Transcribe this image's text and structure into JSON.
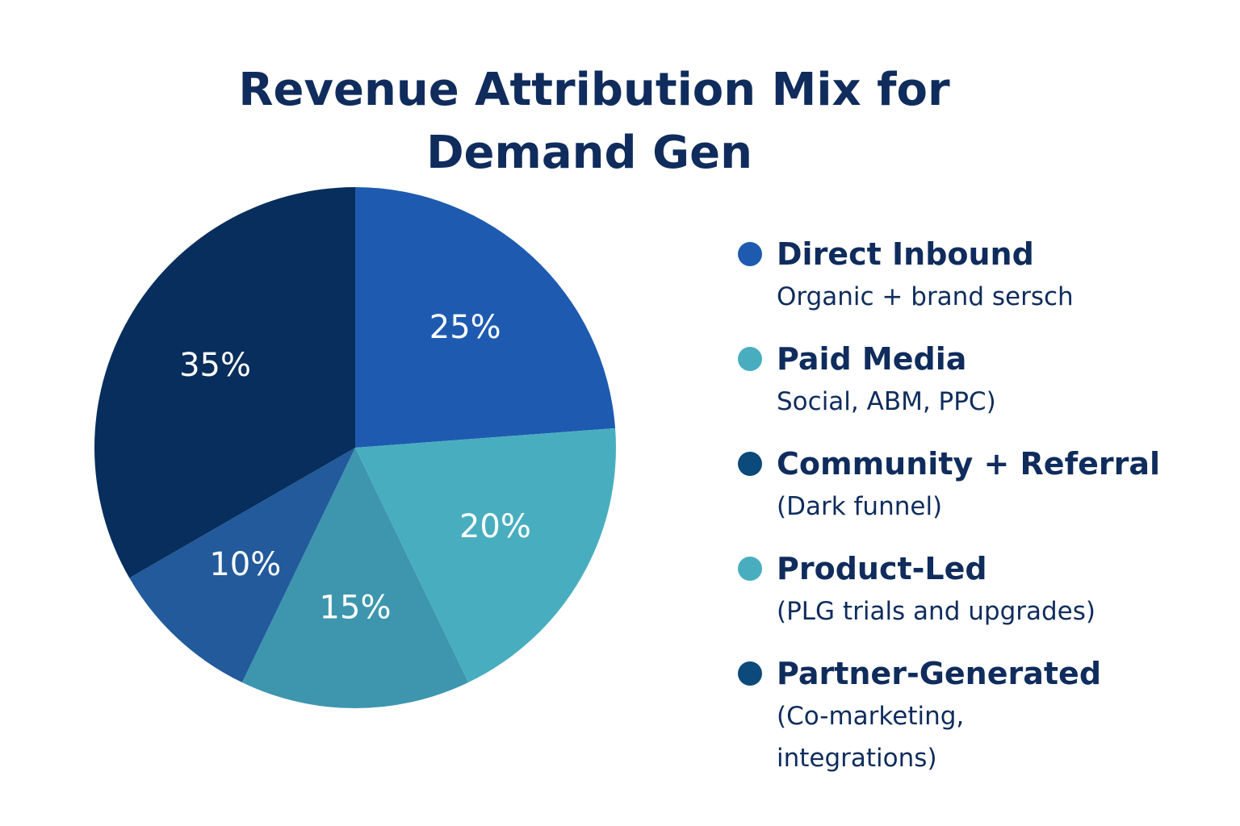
{
  "chart_data": {
    "type": "pie",
    "title": [
      "Revenue Attribution Mix for",
      "Demand Gen"
    ],
    "values": [
      25,
      20,
      15,
      10,
      35
    ],
    "value_labels": [
      "25%",
      "20%",
      "15%",
      "10%",
      "35%"
    ],
    "colors": [
      "#1e5bb0",
      "#48aebf",
      "#3d96ae",
      "#225a9b",
      "#072e5c"
    ],
    "legend": [
      {
        "name": "Direct Inbound",
        "description": "Organic + brand sersch",
        "color": "#1e5bb0"
      },
      {
        "name": "Paid Media",
        "description": "Social, ABM, PPC)",
        "color": "#48aebf"
      },
      {
        "name": "Community + Referral",
        "description": "(Dark funnel)",
        "color": "#0b4a7a"
      },
      {
        "name": "Product-Led",
        "description": "(PLG trials and upgrades)",
        "color": "#48aebf"
      },
      {
        "name": "Partner-Generated",
        "description": "(Co-marketing, integrations)",
        "color": "#0b4a7a"
      }
    ]
  }
}
